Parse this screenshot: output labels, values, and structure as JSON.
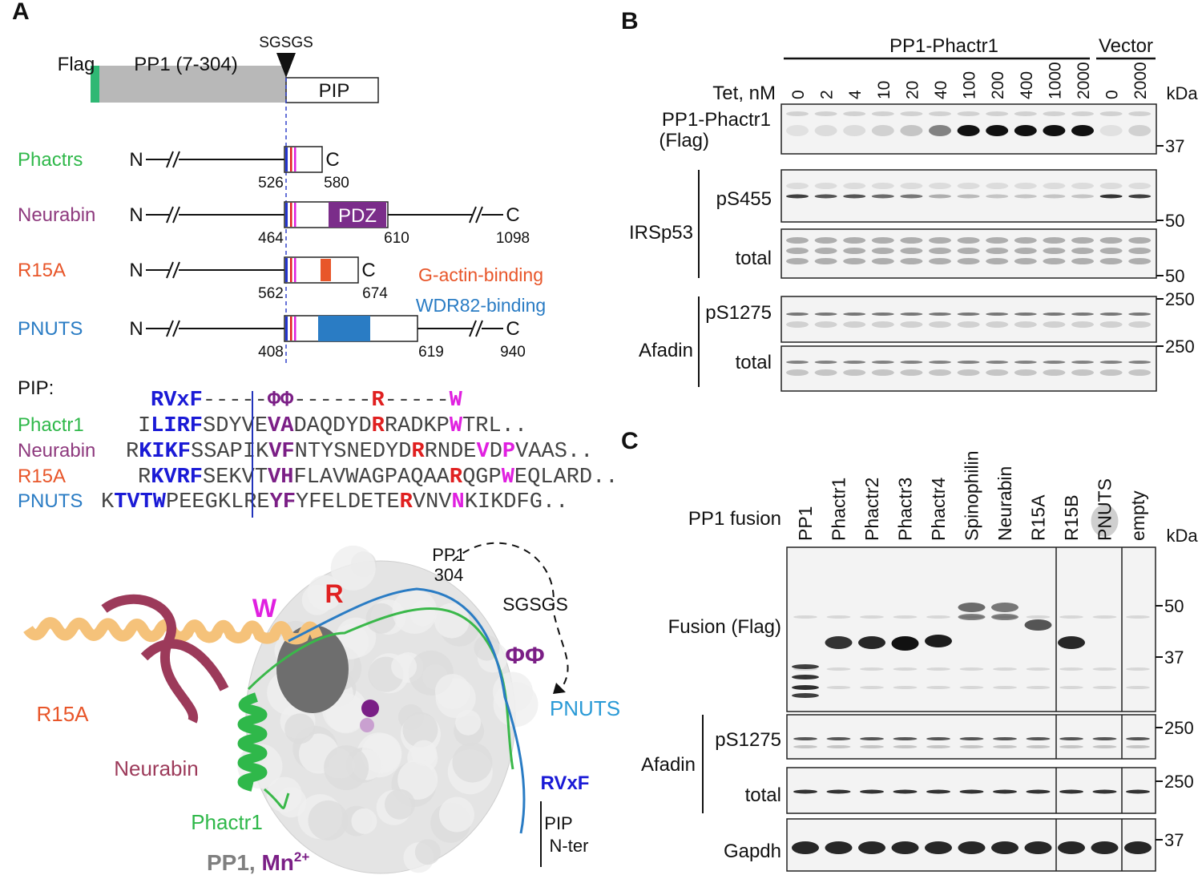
{
  "panel_a": {
    "label": "A",
    "construct": {
      "flag": "Flag",
      "pp1": "PP1 (7-304)",
      "linker": "SGSGS",
      "pip": "PIP"
    },
    "proteins": [
      {
        "name": "Phactrs",
        "color": "#2fb84a",
        "n": "N",
        "c": "C",
        "start": 526,
        "end": 580
      },
      {
        "name": "Neurabin",
        "color": "#8e3a7e",
        "n": "N",
        "c": "C",
        "start": 464,
        "end": 610,
        "domain": "PDZ",
        "length": 1098
      },
      {
        "name": "R15A",
        "color": "#e8562a",
        "n": "N",
        "c": "C",
        "start": 562,
        "end": 674
      },
      {
        "name": "PNUTS",
        "color": "#2a7cc4",
        "n": "N",
        "c": "C",
        "start": 408,
        "end": 619,
        "length": 940
      }
    ],
    "binding_labels": [
      {
        "text": "G-actin-binding",
        "color": "#e8562a"
      },
      {
        "text": "WDR82-binding",
        "color": "#2a7cc4"
      }
    ],
    "alignment": {
      "label": "PIP:",
      "consensus": [
        {
          "text": "RVxF",
          "color": "#1a1ad6"
        },
        {
          "text": "-----"
        },
        {
          "text": "ΦΦ",
          "color": "#7b1f86"
        },
        {
          "text": "------"
        },
        {
          "text": "R",
          "color": "#e02020"
        },
        {
          "text": "-----"
        },
        {
          "text": "W",
          "color": "#e020e0"
        }
      ],
      "rows": [
        {
          "name": "Phactr1",
          "color": "#2fb84a",
          "segments": [
            {
              "text": "I"
            },
            {
              "text": "LIRF",
              "color": "#1a1ad6"
            },
            {
              "text": "SDYVE"
            },
            {
              "text": "VA",
              "color": "#7b1f86"
            },
            {
              "text": "DAQDYD"
            },
            {
              "text": "R",
              "color": "#e02020"
            },
            {
              "text": "RADKP"
            },
            {
              "text": "W",
              "color": "#e020e0"
            },
            {
              "text": "TRL.."
            }
          ]
        },
        {
          "name": "Neurabin",
          "color": "#8e3a7e",
          "segments": [
            {
              "text": "R"
            },
            {
              "text": "KIKF",
              "color": "#1a1ad6"
            },
            {
              "text": "SSAPIK"
            },
            {
              "text": "VF",
              "color": "#7b1f86"
            },
            {
              "text": "NTYSNEDYD"
            },
            {
              "text": "R",
              "color": "#e02020"
            },
            {
              "text": "RNDE"
            },
            {
              "text": "V",
              "color": "#e020e0"
            },
            {
              "text": "D"
            },
            {
              "text": "P",
              "color": "#e020e0"
            },
            {
              "text": "VAAS.."
            }
          ]
        },
        {
          "name": "R15A",
          "color": "#e8562a",
          "segments": [
            {
              "text": "R"
            },
            {
              "text": "KVRF",
              "color": "#1a1ad6"
            },
            {
              "text": "SEKVT"
            },
            {
              "text": "VH",
              "color": "#7b1f86"
            },
            {
              "text": "FLAVWAGPAQAA"
            },
            {
              "text": "R",
              "color": "#e02020"
            },
            {
              "text": "QGP"
            },
            {
              "text": "W",
              "color": "#e020e0"
            },
            {
              "text": "EQLARD.."
            }
          ]
        },
        {
          "name": "PNUTS",
          "color": "#2a7cc4",
          "segments": [
            {
              "text": "K"
            },
            {
              "text": "TVTW",
              "color": "#1a1ad6"
            },
            {
              "text": "PEEGKLRE"
            },
            {
              "text": "YF",
              "color": "#7b1f86"
            },
            {
              "text": "YFELDETE"
            },
            {
              "text": "R",
              "color": "#e02020"
            },
            {
              "text": "VNV"
            },
            {
              "text": "N",
              "color": "#e020e0"
            },
            {
              "text": "KIKDFG.."
            }
          ]
        }
      ]
    },
    "structure": {
      "labels": [
        {
          "text": "W",
          "color": "#e020e0"
        },
        {
          "text": "R",
          "color": "#e02020"
        },
        {
          "text": "PP1",
          "color": "#111111"
        },
        {
          "text": "304",
          "color": "#111111"
        },
        {
          "text": "SGSGS",
          "color": "#111111"
        },
        {
          "text": "ΦΦ",
          "color": "#7b1f86"
        },
        {
          "text": "PNUTS",
          "color": "#2a9ad6"
        },
        {
          "text": "R15A",
          "color": "#e8562a"
        },
        {
          "text": "Neurabin",
          "color": "#9c3a5a"
        },
        {
          "text": "Phactr1",
          "color": "#2fb84a"
        },
        {
          "text": "RVxF",
          "color": "#1a1ad6"
        },
        {
          "text": "PIP",
          "color": "#111111"
        },
        {
          "text": "N-ter",
          "color": "#111111"
        }
      ],
      "caption": [
        {
          "text": "PP1, ",
          "color": "#7f7f7f"
        },
        {
          "text": "Mn",
          "color": "#7b1f86"
        },
        {
          "text": "2+",
          "color": "#7b1f86",
          "superscript": true
        }
      ]
    }
  },
  "panel_b": {
    "label": "B",
    "groups": [
      "PP1-Phactr1",
      "Vector"
    ],
    "axis_label": "Tet, nM",
    "lanes": [
      0,
      2,
      4,
      10,
      20,
      40,
      100,
      200,
      400,
      1000,
      2000,
      0,
      2000
    ],
    "unit": "kDa",
    "blots": [
      {
        "label": [
          "PP1-Phactr1",
          "(Flag)"
        ],
        "markers": [
          37
        ]
      },
      {
        "label": [
          "pS455"
        ],
        "markers": [
          50
        ]
      },
      {
        "label": [
          "total"
        ],
        "markers": [
          50
        ]
      },
      {
        "label": [
          "pS1275"
        ],
        "markers": [
          250
        ]
      },
      {
        "label": [
          "total"
        ],
        "markers": [
          250
        ]
      }
    ],
    "blot_groups": [
      "IRSp53",
      "Afadin"
    ]
  },
  "panel_c": {
    "label": "C",
    "axis_label": "PP1 fusion",
    "lanes": [
      "PP1",
      "Phactr1",
      "Phactr2",
      "Phactr3",
      "Phactr4",
      "Spinophilin",
      "Neurabin",
      "R15A",
      "R15B",
      "PNUTS",
      "empty"
    ],
    "unit": "kDa",
    "blots": [
      {
        "label": [
          "Fusion (Flag)"
        ],
        "markers": [
          50,
          37
        ]
      },
      {
        "label": [
          "pS1275"
        ],
        "markers": [
          250
        ]
      },
      {
        "label": [
          "total"
        ],
        "markers": [
          250
        ]
      },
      {
        "label": [
          "Gapdh"
        ],
        "markers": [
          37
        ]
      }
    ],
    "blot_groups": [
      "Afadin"
    ]
  }
}
